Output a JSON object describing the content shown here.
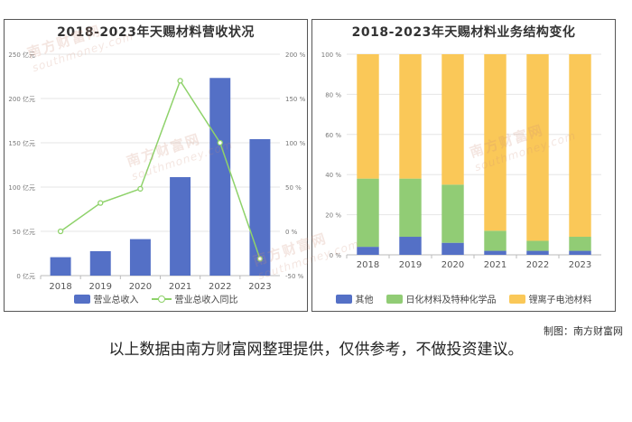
{
  "watermark": {
    "brand": "南方财富网",
    "domain": "southmoney.com"
  },
  "chart_data": [
    {
      "type": "bar",
      "title": "2018-2023年天赐材料营收状况",
      "categories": [
        "2018",
        "2019",
        "2020",
        "2021",
        "2022",
        "2023"
      ],
      "y_left": {
        "ticks": [
          0,
          50,
          100,
          150,
          200,
          250
        ],
        "unit_suffix": "亿元",
        "ylim": [
          0,
          250
        ]
      },
      "y_right": {
        "ticks": [
          -50,
          0,
          50,
          100,
          150,
          200
        ],
        "unit_suffix": "%",
        "ylim": [
          -50,
          200
        ]
      },
      "grid": true,
      "legend_position": "bottom",
      "series": [
        {
          "name": "营业总收入",
          "type": "bar",
          "axis": "left",
          "color": "#5470c6",
          "values": [
            20.8,
            27.6,
            41.2,
            111.2,
            223.2,
            154.1
          ]
        },
        {
          "name": "营业总收入同比",
          "type": "line",
          "axis": "right",
          "color": "#8ed26a",
          "values": [
            0,
            32,
            48,
            170,
            100,
            -31
          ]
        }
      ]
    },
    {
      "type": "bar",
      "stacked": true,
      "title": "2018-2023年天赐材料业务结构变化",
      "categories": [
        "2018",
        "2019",
        "2020",
        "2021",
        "2022",
        "2023"
      ],
      "y": {
        "ticks": [
          0,
          20,
          40,
          60,
          80,
          100
        ],
        "unit_suffix": "%",
        "ylim": [
          0,
          100
        ]
      },
      "grid": true,
      "legend_position": "bottom",
      "series": [
        {
          "name": "其他",
          "color": "#5470c6",
          "values": [
            4,
            9,
            6,
            2,
            2,
            2
          ]
        },
        {
          "name": "日化材料及特种化学品",
          "color": "#91cc75",
          "values": [
            34,
            29,
            29,
            10,
            5,
            7
          ]
        },
        {
          "name": "锂离子电池材料",
          "color": "#fac858",
          "values": [
            62,
            62,
            65,
            88,
            93,
            91
          ]
        }
      ]
    }
  ],
  "credit": "制图：南方财富网",
  "disclaimer": "以上数据由南方财富网整理提供，仅供参考，不做投资建议。"
}
